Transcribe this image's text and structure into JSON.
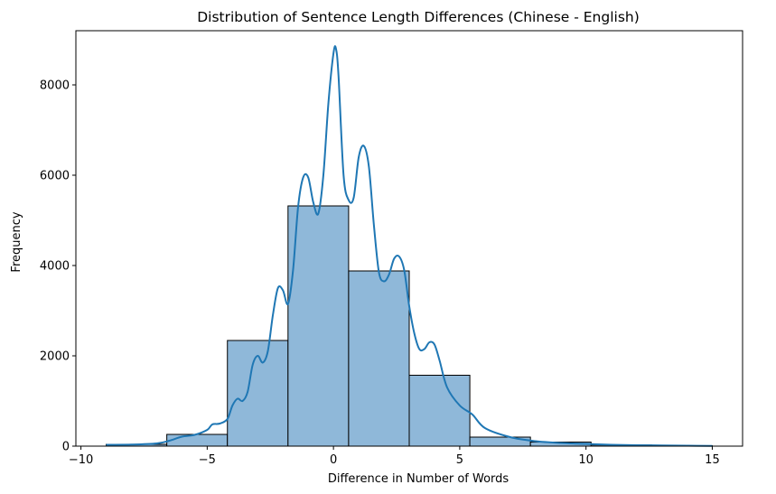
{
  "chart_data": {
    "type": "bar",
    "title": "Distribution of Sentence Length Differences (Chinese - English)",
    "xlabel": "Difference in Number of Words",
    "ylabel": "Frequency",
    "xlim": [
      -10.2,
      16.2
    ],
    "ylim": [
      0,
      9200
    ],
    "xticks": [
      -10,
      -5,
      0,
      5,
      10,
      15
    ],
    "yticks": [
      0,
      2000,
      4000,
      6000,
      8000
    ],
    "grid": false,
    "legend": "none",
    "bar_color": "#8fb8d9",
    "bar_edge_color": "#000000",
    "kde_color": "#1f77b4",
    "bins": [
      {
        "x0": -9.0,
        "x1": -6.6,
        "value": 40
      },
      {
        "x0": -6.6,
        "x1": -4.2,
        "value": 260
      },
      {
        "x0": -4.2,
        "x1": -1.8,
        "value": 2340
      },
      {
        "x0": -1.8,
        "x1": 0.6,
        "value": 5320
      },
      {
        "x0": 0.6,
        "x1": 3.0,
        "value": 3880
      },
      {
        "x0": 3.0,
        "x1": 5.4,
        "value": 1570
      },
      {
        "x0": 5.4,
        "x1": 7.8,
        "value": 200
      },
      {
        "x0": 7.8,
        "x1": 10.2,
        "value": 90
      },
      {
        "x0": 10.2,
        "x1": 12.6,
        "value": 25
      },
      {
        "x0": 12.6,
        "x1": 15.0,
        "value": 10
      }
    ],
    "kde": {
      "x": [
        -9,
        -8,
        -7,
        -6.5,
        -6,
        -5.5,
        -5,
        -4.8,
        -4.5,
        -4.2,
        -4,
        -3.8,
        -3.6,
        -3.4,
        -3.2,
        -3,
        -2.8,
        -2.6,
        -2.4,
        -2.2,
        -2,
        -1.8,
        -1.6,
        -1.4,
        -1.2,
        -1,
        -0.8,
        -0.6,
        -0.4,
        -0.2,
        0,
        0.1,
        0.2,
        0.4,
        0.6,
        0.8,
        1,
        1.2,
        1.4,
        1.6,
        1.8,
        2,
        2.2,
        2.4,
        2.6,
        2.8,
        3,
        3.2,
        3.4,
        3.6,
        3.8,
        4,
        4.2,
        4.5,
        5,
        5.5,
        6,
        7,
        8,
        9,
        10,
        11,
        12,
        13,
        14,
        15
      ],
      "y": [
        30,
        35,
        60,
        120,
        210,
        250,
        360,
        480,
        500,
        600,
        900,
        1050,
        1000,
        1200,
        1800,
        2000,
        1850,
        2100,
        2900,
        3500,
        3450,
        3150,
        3900,
        5300,
        5950,
        5950,
        5400,
        5150,
        6000,
        7600,
        8700,
        8800,
        8200,
        6000,
        5450,
        5500,
        6400,
        6650,
        6200,
        4900,
        3850,
        3650,
        3800,
        4150,
        4200,
        3900,
        3100,
        2500,
        2150,
        2150,
        2300,
        2250,
        1900,
        1300,
        900,
        700,
        400,
        200,
        110,
        70,
        50,
        30,
        20,
        15,
        10,
        5
      ]
    }
  }
}
